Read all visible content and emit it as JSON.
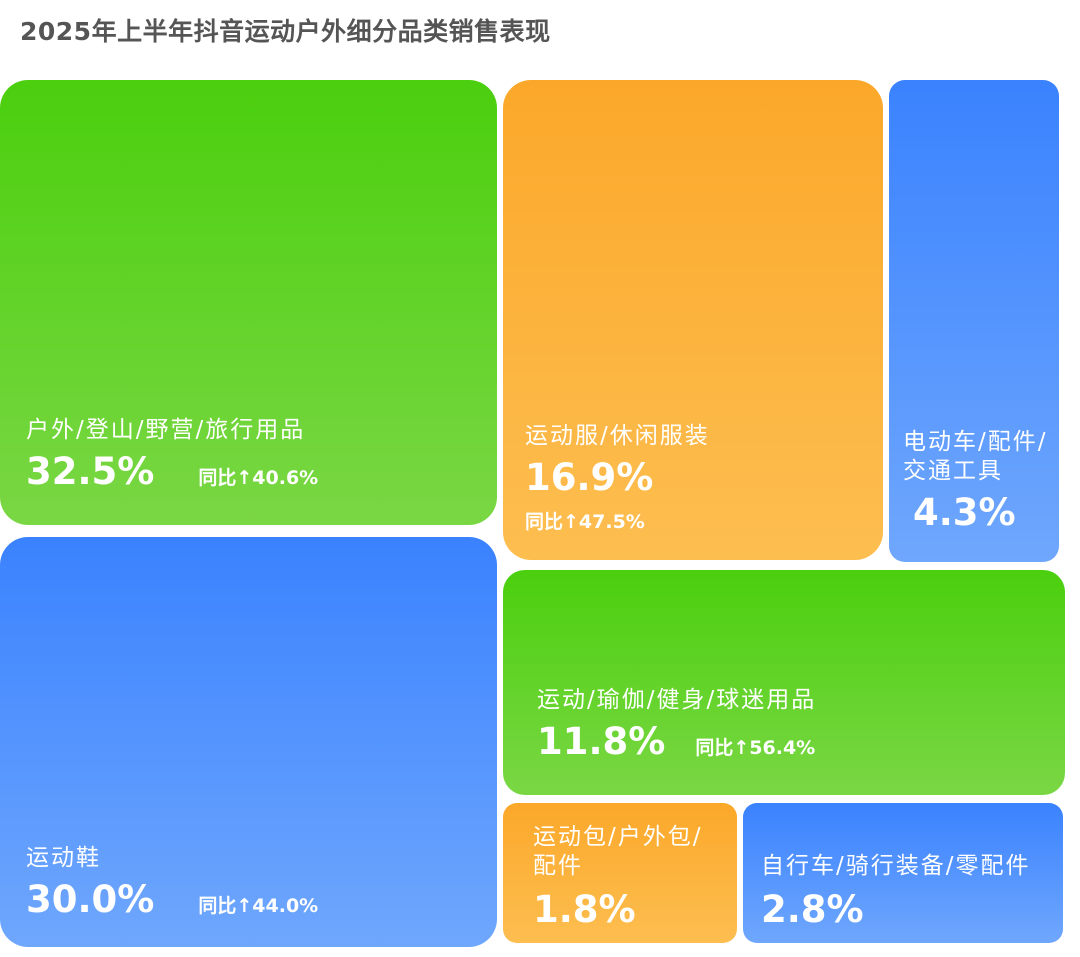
{
  "title": "2025年上半年抖音运动户外细分品类销售表现",
  "chart_data": {
    "type": "treemap",
    "title": "2025年上半年抖音运动户外细分品类销售表现",
    "unit": "%",
    "items": [
      {
        "label": "户外/登山/野营/旅行用品",
        "share": 32.5,
        "pct_text": "32.5%",
        "yoy_text": "同比↑40.6%",
        "yoy": 40.6,
        "color": "#4bcf0e"
      },
      {
        "label": "运动服/休闲服装",
        "share": 16.9,
        "pct_text": "16.9%",
        "yoy_text": "同比↑47.5%",
        "yoy": 47.5,
        "color": "#fba82a"
      },
      {
        "label": "电动车/配件/交通工具",
        "share": 4.3,
        "pct_text": "4.3%",
        "color": "#3a82fe"
      },
      {
        "label": "运动鞋",
        "share": 30.0,
        "pct_text": "30.0%",
        "yoy_text": "同比↑44.0%",
        "yoy": 44.0,
        "color": "#3a82fe"
      },
      {
        "label": "运动/瑜伽/健身/球迷用品",
        "share": 11.8,
        "pct_text": "11.8%",
        "yoy_text": "同比↑56.4%",
        "yoy": 56.4,
        "color": "#4bcf0e"
      },
      {
        "label": "运动包/户外包/配件",
        "share": 1.8,
        "pct_text": "1.8%",
        "color": "#fba82a"
      },
      {
        "label": "自行车/骑行装备/零配件",
        "share": 2.8,
        "pct_text": "2.8%",
        "color": "#3a82fe"
      }
    ]
  }
}
